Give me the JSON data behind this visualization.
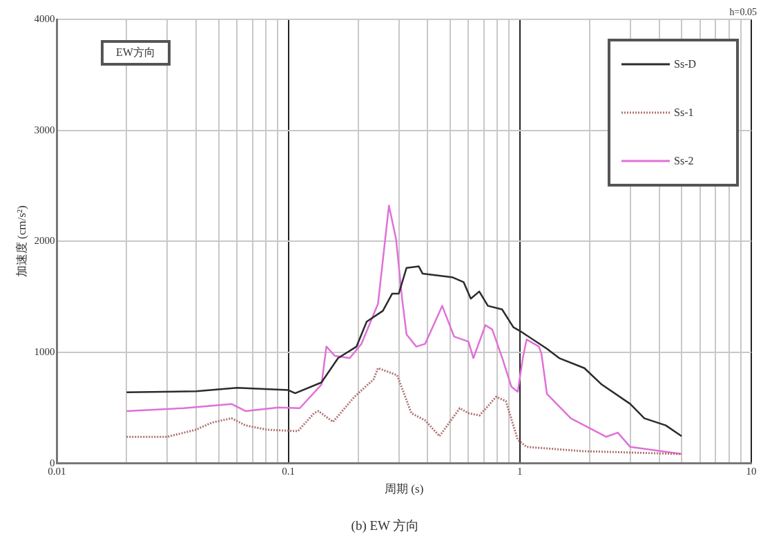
{
  "chart_data": {
    "type": "line",
    "title": "(b) EW 方向",
    "xlabel": "周期 (s)",
    "ylabel": "加速度 (cm/s²)",
    "annotations": [
      "EW方向",
      "h=0.05"
    ],
    "log": "x",
    "grid": true,
    "legend": "top right",
    "marker": "none",
    "xlim": [
      0.01,
      10
    ],
    "ylim": [
      0,
      4000
    ],
    "xticks": [
      0.01,
      {
        "value": 0.02,
        "label": null
      },
      {
        "value": 0.03,
        "label": null
      },
      {
        "value": 0.04,
        "label": null
      },
      {
        "value": 0.05,
        "label": null
      },
      {
        "value": 0.06,
        "label": null
      },
      {
        "value": 0.07,
        "label": null
      },
      {
        "value": 0.08,
        "label": null
      },
      {
        "value": 0.09,
        "label": null
      },
      0.1,
      {
        "value": 0.2,
        "label": null
      },
      {
        "value": 0.3,
        "label": null
      },
      {
        "value": 0.4,
        "label": null
      },
      {
        "value": 0.5,
        "label": null
      },
      {
        "value": 0.6,
        "label": null
      },
      {
        "value": 0.7,
        "label": null
      },
      {
        "value": 0.8,
        "label": null
      },
      {
        "value": 0.9,
        "label": null
      },
      1,
      {
        "value": 2,
        "label": null
      },
      {
        "value": 3,
        "label": null
      },
      {
        "value": 4,
        "label": null
      },
      {
        "value": 5,
        "label": null
      },
      {
        "value": 6,
        "label": null
      },
      {
        "value": 7,
        "label": null
      },
      {
        "value": 8,
        "label": null
      },
      {
        "value": 9,
        "label": null
      },
      10
    ],
    "yticks": [
      0,
      1000,
      2000,
      3000,
      4000
    ],
    "series": [
      {
        "name": "Ss-D",
        "color": "#2b2b2b",
        "line_style": "solid",
        "x": [
          0.02,
          0.04,
          0.06,
          0.1,
          0.107,
          0.139,
          0.164,
          0.197,
          0.218,
          0.256,
          0.281,
          0.3,
          0.324,
          0.366,
          0.38,
          0.51,
          0.572,
          0.614,
          0.668,
          0.728,
          0.838,
          0.938,
          1.0,
          1.31,
          1.48,
          1.9,
          2.26,
          3.0,
          3.45,
          4.27,
          5.0
        ],
        "values": [
          640,
          650,
          680,
          660,
          632,
          729,
          948,
          1052,
          1277,
          1374,
          1529,
          1529,
          1761,
          1774,
          1710,
          1677,
          1632,
          1484,
          1548,
          1419,
          1387,
          1226,
          1194,
          1032,
          948,
          858,
          710,
          535,
          406,
          342,
          245
        ]
      },
      {
        "name": "Ss-1",
        "color": "#b07070",
        "line_style": "dotted",
        "x": [
          0.02,
          0.03,
          0.0398,
          0.0469,
          0.0568,
          0.0653,
          0.081,
          0.11,
          0.129,
          0.135,
          0.156,
          0.193,
          0.233,
          0.244,
          0.295,
          0.34,
          0.39,
          0.45,
          0.55,
          0.6,
          0.67,
          0.79,
          0.87,
          0.98,
          1.07,
          1.87,
          5.0
        ],
        "values": [
          239,
          239,
          303,
          368,
          406,
          342,
          303,
          290,
          452,
          471,
          374,
          600,
          755,
          858,
          794,
          452,
          387,
          245,
          497,
          452,
          432,
          600,
          561,
          213,
          148,
          110,
          84
        ]
      },
      {
        "name": "Ss-2",
        "color": "#e070d8",
        "line_style": "solid",
        "x": [
          0.02,
          0.0353,
          0.0568,
          0.0653,
          0.0905,
          0.112,
          0.139,
          0.146,
          0.159,
          0.184,
          0.207,
          0.244,
          0.272,
          0.292,
          0.31,
          0.324,
          0.357,
          0.39,
          0.462,
          0.52,
          0.6,
          0.63,
          0.71,
          0.76,
          0.84,
          0.92,
          0.98,
          1.03,
          1.07,
          1.21,
          1.24,
          1.31,
          1.66,
          2.36,
          2.65,
          3.0,
          5.0
        ],
        "values": [
          471,
          497,
          535,
          471,
          503,
          497,
          710,
          1052,
          968,
          948,
          1077,
          1439,
          2323,
          2019,
          1484,
          1161,
          1052,
          1077,
          1419,
          1142,
          1097,
          948,
          1245,
          1206,
          948,
          690,
          645,
          948,
          1116,
          1052,
          987,
          626,
          406,
          239,
          277,
          148,
          84
        ]
      }
    ]
  }
}
